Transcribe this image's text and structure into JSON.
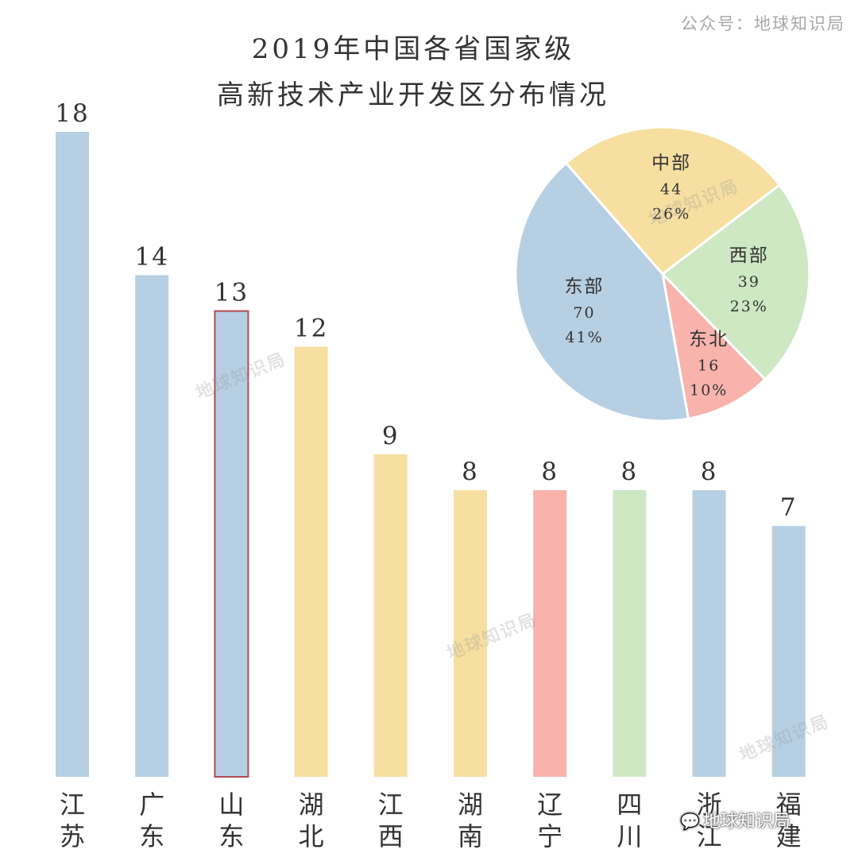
{
  "header": {
    "title_line1": "2019年中国各省国家级",
    "title_line2": "高新技术产业开发区分布情况",
    "credit": "公众号：地球知识局"
  },
  "watermark": {
    "text": "地球知识局",
    "footer": "地球知识局",
    "footer_icon": "wechat-icon"
  },
  "colors": {
    "east": "#b6cfe3",
    "central": "#f6dfa0",
    "west": "#cde8c3",
    "northeast": "#f7b3ac",
    "highlight_border": "#b34a52",
    "label": "#333333"
  },
  "chart_data": [
    {
      "type": "bar",
      "categories": [
        "江苏",
        "广东",
        "山东",
        "湖北",
        "江西",
        "湖南",
        "辽宁",
        "四川",
        "浙江",
        "福建"
      ],
      "values": [
        18,
        14,
        13,
        12,
        9,
        8,
        8,
        8,
        8,
        7
      ],
      "regions": [
        "east",
        "east",
        "east",
        "central",
        "central",
        "central",
        "northeast",
        "west",
        "east",
        "east"
      ],
      "highlighted": [
        "山东"
      ],
      "ylim": [
        0,
        18
      ],
      "grid": false,
      "data_labels": true
    },
    {
      "type": "pie",
      "slices": [
        {
          "label": "中部",
          "value": 44,
          "percent": "26%",
          "region": "central"
        },
        {
          "label": "西部",
          "value": 39,
          "percent": "23%",
          "region": "west"
        },
        {
          "label": "东北",
          "value": 16,
          "percent": "10%",
          "region": "northeast"
        },
        {
          "label": "东部",
          "value": 70,
          "percent": "41%",
          "region": "east"
        }
      ]
    }
  ]
}
